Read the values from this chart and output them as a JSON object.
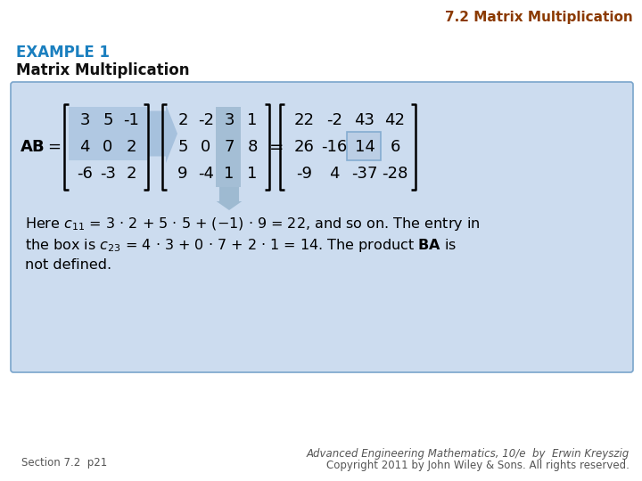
{
  "title_top": "7.2 Matrix Multiplication",
  "title_top_color": "#8B3A00",
  "example_label": "EXAMPLE 1",
  "example_label_color": "#1a7fbf",
  "subtitle": "Matrix Multiplication",
  "bg_color": "#ffffff",
  "box_bg_color": "#ccdcef",
  "box_border_color": "#7aa5cc",
  "matrix_A": [
    [
      3,
      5,
      -1
    ],
    [
      4,
      0,
      2
    ],
    [
      -6,
      -3,
      2
    ]
  ],
  "matrix_B": [
    [
      2,
      -2,
      3,
      1
    ],
    [
      5,
      0,
      7,
      8
    ],
    [
      9,
      -4,
      1,
      1
    ]
  ],
  "matrix_C": [
    [
      22,
      -2,
      43,
      42
    ],
    [
      26,
      -16,
      14,
      6
    ],
    [
      -9,
      4,
      -37,
      -28
    ]
  ],
  "footer_left": "Section 7.2  p21",
  "footer_right_line1": "Advanced Engineering Mathematics, 10/e  by  Erwin Kreyszig",
  "footer_right_line2": "Copyright 2011 by John Wiley & Sons. All rights reserved.",
  "arrow_color": "#9ab8d8",
  "col_highlight_color": "#8fafc8",
  "c23_box_color": "#b8cce4",
  "c23_border_color": "#7aa5cc"
}
